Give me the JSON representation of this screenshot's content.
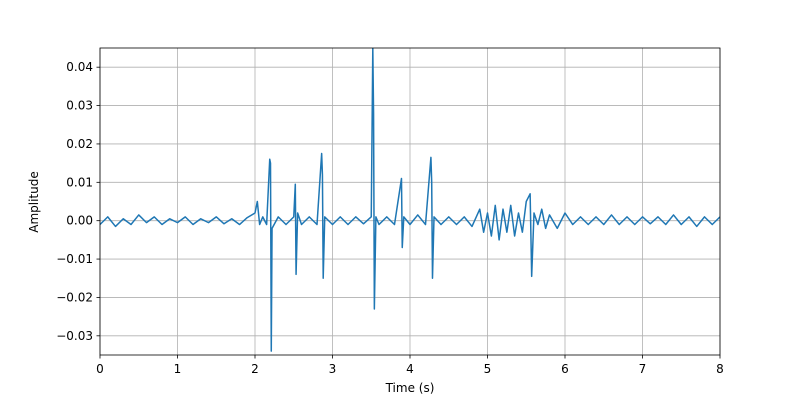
{
  "chart_data": {
    "type": "line",
    "xlabel": "Time (s)",
    "ylabel": "Amplitude",
    "color": "#1f77b4",
    "grid": true,
    "xlim": [
      0,
      8
    ],
    "ylim": [
      -0.035,
      0.045
    ],
    "xticks": [
      0,
      1,
      2,
      3,
      4,
      5,
      6,
      7,
      8
    ],
    "yticks": [
      {
        "value": -0.03,
        "label": "−0.03"
      },
      {
        "value": -0.02,
        "label": "−0.02"
      },
      {
        "value": -0.01,
        "label": "−0.01"
      },
      {
        "value": 0,
        "label": "0.00"
      },
      {
        "value": 0.01,
        "label": "0.01"
      },
      {
        "value": 0.02,
        "label": "0.02"
      },
      {
        "value": 0.03,
        "label": "0.03"
      },
      {
        "value": 0.04,
        "label": "0.04"
      }
    ],
    "x": [
      0,
      0.1,
      0.2,
      0.3,
      0.4,
      0.5,
      0.6,
      0.7,
      0.8,
      0.9,
      1.0,
      1.1,
      1.2,
      1.3,
      1.4,
      1.5,
      1.6,
      1.7,
      1.8,
      1.9,
      2.0,
      2.03,
      2.06,
      2.1,
      2.15,
      2.19,
      2.2,
      2.21,
      2.22,
      2.3,
      2.4,
      2.5,
      2.52,
      2.53,
      2.55,
      2.6,
      2.7,
      2.8,
      2.86,
      2.87,
      2.88,
      2.9,
      3.0,
      3.1,
      3.2,
      3.3,
      3.4,
      3.5,
      3.52,
      3.53,
      3.54,
      3.56,
      3.6,
      3.7,
      3.8,
      3.89,
      3.9,
      3.92,
      4.0,
      4.1,
      4.2,
      4.27,
      4.28,
      4.29,
      4.31,
      4.4,
      4.5,
      4.6,
      4.7,
      4.8,
      4.9,
      4.95,
      5.0,
      5.05,
      5.1,
      5.15,
      5.2,
      5.25,
      5.3,
      5.35,
      5.4,
      5.45,
      5.5,
      5.55,
      5.57,
      5.6,
      5.65,
      5.7,
      5.75,
      5.8,
      5.9,
      6.0,
      6.1,
      6.2,
      6.3,
      6.4,
      6.5,
      6.6,
      6.7,
      6.8,
      6.9,
      7.0,
      7.1,
      7.2,
      7.3,
      7.4,
      7.5,
      7.6,
      7.7,
      7.8,
      7.9,
      8.0
    ],
    "values": [
      -0.001,
      0.001,
      -0.0015,
      0.0005,
      -0.001,
      0.0015,
      -0.0005,
      0.001,
      -0.001,
      0.0005,
      -0.0005,
      0.001,
      -0.001,
      0.0005,
      -0.0005,
      0.001,
      -0.0008,
      0.0005,
      -0.001,
      0.0008,
      0.002,
      0.005,
      -0.001,
      0.001,
      -0.001,
      0.016,
      0.015,
      -0.034,
      -0.002,
      0.001,
      -0.001,
      0.001,
      0.0095,
      -0.014,
      0.002,
      -0.001,
      0.001,
      -0.001,
      0.0175,
      0.012,
      -0.015,
      0.001,
      -0.001,
      0.001,
      -0.001,
      0.001,
      -0.0008,
      0.001,
      0.045,
      0.028,
      -0.023,
      0.001,
      -0.001,
      0.001,
      -0.001,
      0.011,
      -0.007,
      0.001,
      -0.001,
      0.0015,
      -0.001,
      0.0165,
      0.01,
      -0.015,
      0.001,
      -0.001,
      0.001,
      -0.001,
      0.001,
      -0.0015,
      0.003,
      -0.003,
      0.002,
      -0.004,
      0.004,
      -0.005,
      0.003,
      -0.003,
      0.004,
      -0.004,
      0.002,
      -0.003,
      0.005,
      0.007,
      -0.0145,
      0.002,
      -0.001,
      0.003,
      -0.002,
      0.0015,
      -0.002,
      0.002,
      -0.001,
      0.001,
      -0.001,
      0.001,
      -0.001,
      0.0015,
      -0.001,
      0.001,
      -0.001,
      0.001,
      -0.0008,
      0.001,
      -0.001,
      0.0015,
      -0.001,
      0.001,
      -0.0015,
      0.001,
      -0.001,
      0.001
    ]
  }
}
